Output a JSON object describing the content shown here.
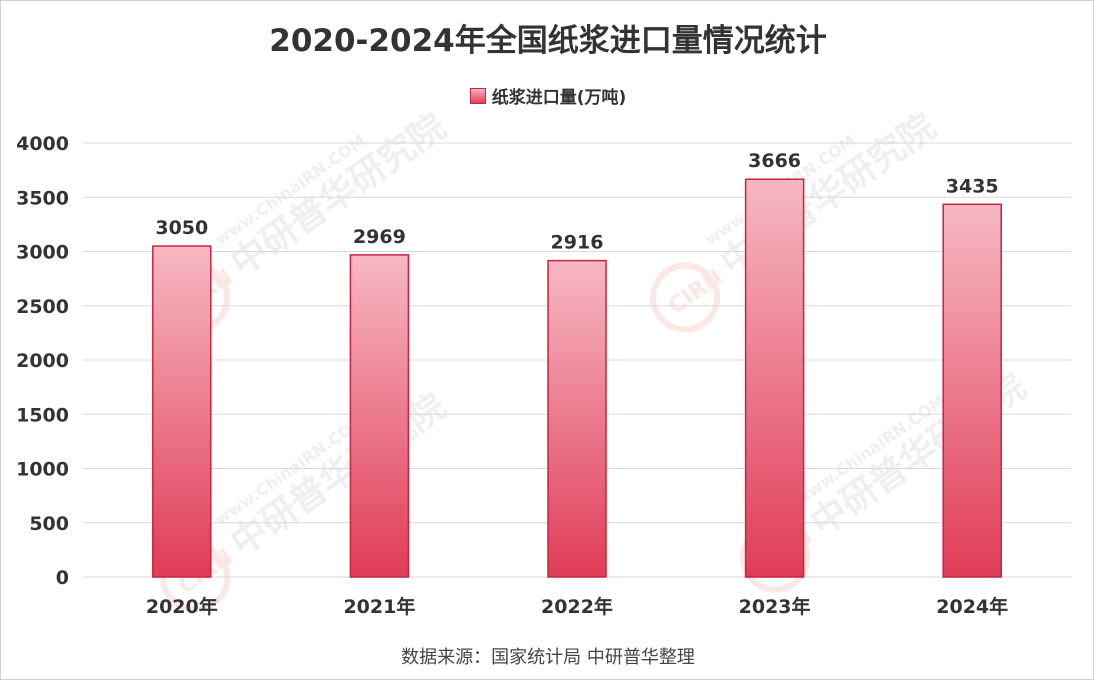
{
  "title": "2020-2024年全国纸浆进口量情况统计",
  "legend": {
    "label": "纸浆进口量(万吨)"
  },
  "source": "数据来源：国家统计局 中研普华整理",
  "watermark": {
    "brand": "CIRN",
    "url": "www.ChinaIRN.COM",
    "name": "中研普华研究院"
  },
  "colors": {
    "bar_top": "#f6b8c2",
    "bar_bottom": "#e03c57",
    "bar_edge": "#c9233f",
    "grid": "#d9d9d9",
    "text": "#333333"
  },
  "chart_data": {
    "type": "bar",
    "title": "2020-2024年全国纸浆进口量情况统计",
    "categories": [
      "2020年",
      "2021年",
      "2022年",
      "2023年",
      "2024年"
    ],
    "series": [
      {
        "name": "纸浆进口量(万吨)",
        "values": [
          3050,
          2969,
          2916,
          3666,
          3435
        ]
      }
    ],
    "yticks": [
      0,
      500,
      1000,
      1500,
      2000,
      2500,
      3000,
      3500,
      4000
    ],
    "ylim": [
      0,
      4000
    ],
    "grid": true,
    "legend_position": "top"
  }
}
